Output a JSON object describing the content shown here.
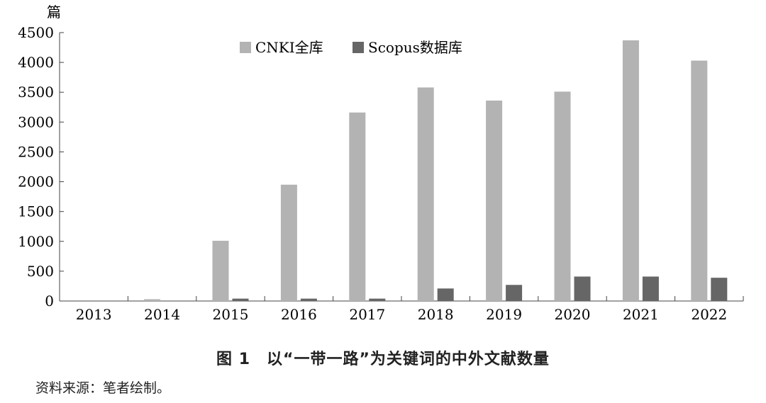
{
  "chart_data": {
    "type": "bar",
    "ylabel": "篇",
    "ylim": [
      0,
      4500
    ],
    "yticks": [
      0,
      500,
      1000,
      1500,
      2000,
      2500,
      3000,
      3500,
      4000,
      4500
    ],
    "grid": false,
    "legend_position": "top-center",
    "categories": [
      "2013",
      "2014",
      "2015",
      "2016",
      "2017",
      "2018",
      "2019",
      "2020",
      "2021",
      "2022"
    ],
    "series": [
      {
        "name": "CNKI全库",
        "color": "#b3b3b3",
        "values": [
          0,
          30,
          1010,
          1950,
          3160,
          3580,
          3360,
          3510,
          4370,
          4030
        ]
      },
      {
        "name": "Scopus数据库",
        "color": "#666666",
        "values": [
          0,
          0,
          40,
          40,
          40,
          210,
          270,
          410,
          410,
          390
        ]
      }
    ]
  },
  "figure": {
    "caption": "图 1　以“一带一路”为关键词的中外文献数量",
    "source": "资料来源：笔者绘制。"
  }
}
